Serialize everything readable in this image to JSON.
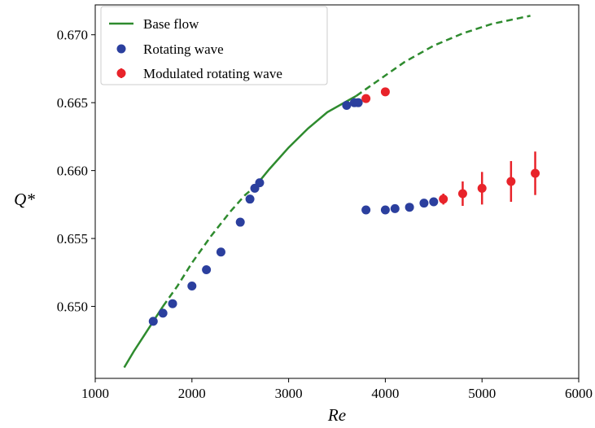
{
  "chart_data": {
    "type": "scatter",
    "xlabel": "Re",
    "ylabel": "Q*",
    "xlim": [
      1000,
      6000
    ],
    "ylim": [
      0.6447,
      0.6722
    ],
    "xticks": [
      1000,
      2000,
      3000,
      4000,
      5000,
      6000
    ],
    "xtick_labels": [
      "1000",
      "2000",
      "3000",
      "4000",
      "5000",
      "6000"
    ],
    "yticks": [
      0.65,
      0.655,
      0.66,
      0.665,
      0.67
    ],
    "ytick_labels": [
      "0.650",
      "0.655",
      "0.660",
      "0.665",
      "0.670"
    ],
    "grid": false,
    "legend_position": "top-left",
    "series": [
      {
        "name": "Base flow",
        "kind": "line",
        "color": "#2e8b2e",
        "solid_segments": [
          [
            [
              1300,
              0.6455
            ],
            [
              1400,
              0.6467
            ],
            [
              1500,
              0.6478
            ],
            [
              1600,
              0.6489
            ],
            [
              1700,
              0.65
            ]
          ],
          [
            [
              2650,
              0.6588
            ],
            [
              2800,
              0.6601
            ],
            [
              3000,
              0.6617
            ],
            [
              3200,
              0.6631
            ],
            [
              3400,
              0.6643
            ],
            [
              3600,
              0.6651
            ],
            [
              3700,
              0.6655
            ]
          ]
        ],
        "dashed_segments": [
          [
            [
              1700,
              0.65
            ],
            [
              1850,
              0.6515
            ],
            [
              2000,
              0.6532
            ],
            [
              2200,
              0.6552
            ],
            [
              2400,
              0.657
            ],
            [
              2550,
              0.6582
            ],
            [
              2650,
              0.6588
            ]
          ],
          [
            [
              3700,
              0.6655
            ],
            [
              3900,
              0.6665
            ],
            [
              4200,
              0.668
            ],
            [
              4500,
              0.6692
            ],
            [
              4800,
              0.6701
            ],
            [
              5100,
              0.6708
            ],
            [
              5500,
              0.6714
            ]
          ]
        ]
      },
      {
        "name": "Rotating wave",
        "kind": "markers",
        "color": "#2b3f9e",
        "points": [
          [
            1600,
            0.6489
          ],
          [
            1700,
            0.6495
          ],
          [
            1800,
            0.6502
          ],
          [
            2000,
            0.6515
          ],
          [
            2150,
            0.6527
          ],
          [
            2300,
            0.654
          ],
          [
            2500,
            0.6562
          ],
          [
            2600,
            0.6579
          ],
          [
            2650,
            0.6587
          ],
          [
            2700,
            0.6591
          ],
          [
            3600,
            0.6648
          ],
          [
            3680,
            0.665
          ],
          [
            3720,
            0.665
          ],
          [
            3800,
            0.6571
          ],
          [
            4000,
            0.6571
          ],
          [
            4100,
            0.6572
          ],
          [
            4250,
            0.6573
          ],
          [
            4400,
            0.6576
          ],
          [
            4500,
            0.6577
          ]
        ]
      },
      {
        "name": "Modulated rotating wave",
        "kind": "errorbar",
        "color": "#e8232a",
        "points": [
          {
            "x": 3800,
            "y": 0.6653,
            "err": 0.0001
          },
          {
            "x": 4000,
            "y": 0.6658,
            "err": 0.0001
          },
          {
            "x": 4600,
            "y": 0.6579,
            "err": 0.0004
          },
          {
            "x": 4800,
            "y": 0.6583,
            "err": 0.0009
          },
          {
            "x": 5000,
            "y": 0.6587,
            "err": 0.0012
          },
          {
            "x": 5300,
            "y": 0.6592,
            "err": 0.0015
          },
          {
            "x": 5550,
            "y": 0.6598,
            "err": 0.0016
          }
        ]
      }
    ]
  }
}
